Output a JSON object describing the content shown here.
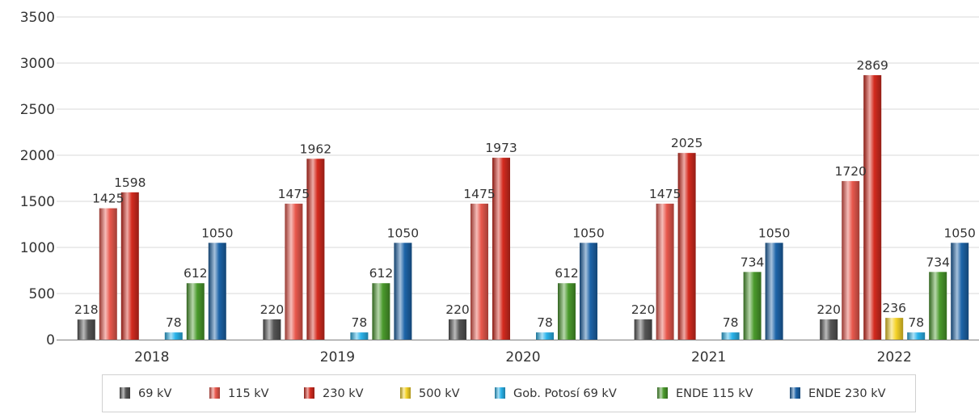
{
  "chart_data": {
    "type": "bar",
    "title": "",
    "xlabel": "",
    "ylabel": "",
    "ylim": [
      0,
      3500
    ],
    "yticks": [
      0,
      500,
      1000,
      1500,
      2000,
      2500,
      3000,
      3500
    ],
    "ytick_labels": [
      "0",
      "500",
      "1000",
      "1500",
      "2000",
      "2500",
      "3000",
      "3500"
    ],
    "grid": "horizontal",
    "legend_position": "bottom",
    "categories": [
      "2018",
      "2019",
      "2020",
      "2021",
      "2022"
    ],
    "series": [
      {
        "name": "69 kV",
        "color": "#555555",
        "values": [
          218,
          220,
          220,
          220,
          220
        ]
      },
      {
        "name": "115 kV",
        "color": "#e8584d",
        "values": [
          1425,
          1475,
          1475,
          1475,
          1720
        ]
      },
      {
        "name": "230 kV",
        "color": "#d42b1f",
        "values": [
          1598,
          1962,
          1973,
          2025,
          2869
        ]
      },
      {
        "name": "500 kV",
        "color": "#f5d328",
        "values": [
          null,
          null,
          null,
          null,
          236
        ]
      },
      {
        "name": "Gob. Potosí 69 kV",
        "color": "#2bb3ea",
        "values": [
          78,
          78,
          78,
          78,
          78
        ]
      },
      {
        "name": "ENDE 115 kV",
        "color": "#4a9a2c",
        "values": [
          612,
          612,
          612,
          734,
          734
        ]
      },
      {
        "name": "ENDE 230 kV",
        "color": "#1d64a8",
        "values": [
          1050,
          1050,
          1050,
          1050,
          1050
        ]
      }
    ]
  }
}
